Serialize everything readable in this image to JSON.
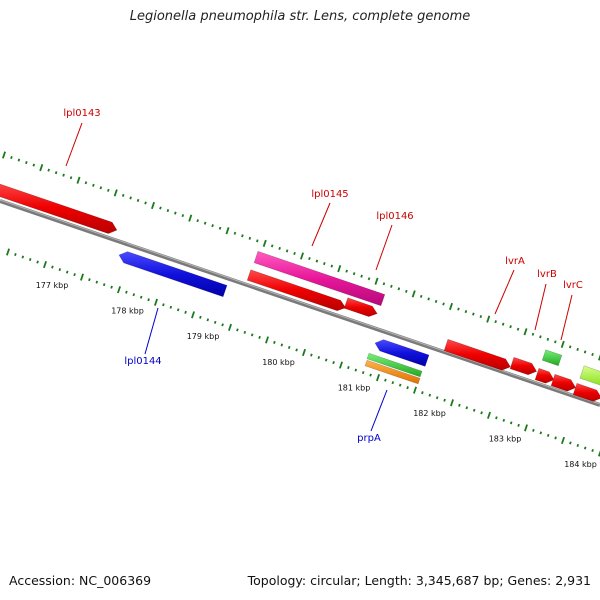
{
  "title": "Legionella pneumophila str. Lens, complete genome",
  "footer": {
    "accession": "Accession: NC_006369",
    "stats": "Topology: circular; Length: 3,345,687 bp; Genes: 2,931"
  },
  "colors": {
    "backbone": "#7a7a7a",
    "tick": "#1a7a1a",
    "label_forward": "#cc0000",
    "label_reverse": "#0000cc",
    "red": "#ee0000",
    "magenta": "#e8179a",
    "blue": "#1111dd",
    "green": "#33cc33",
    "orange": "#ff8c00",
    "lime": "#aaff33"
  },
  "scale_labels": [
    "177 kbp",
    "178 kbp",
    "179 kbp",
    "180 kbp",
    "181 kbp",
    "182 kbp",
    "183 kbp",
    "184 kbp"
  ],
  "gene_labels": [
    {
      "name": "lpl0143",
      "strand": "forward"
    },
    {
      "name": "lpl0145",
      "strand": "forward"
    },
    {
      "name": "lpl0146",
      "strand": "forward"
    },
    {
      "name": "lvrA",
      "strand": "forward"
    },
    {
      "name": "lvrB",
      "strand": "forward"
    },
    {
      "name": "lvrC",
      "strand": "forward"
    },
    {
      "name": "lpl0144",
      "strand": "reverse"
    },
    {
      "name": "prpA",
      "strand": "reverse"
    }
  ]
}
